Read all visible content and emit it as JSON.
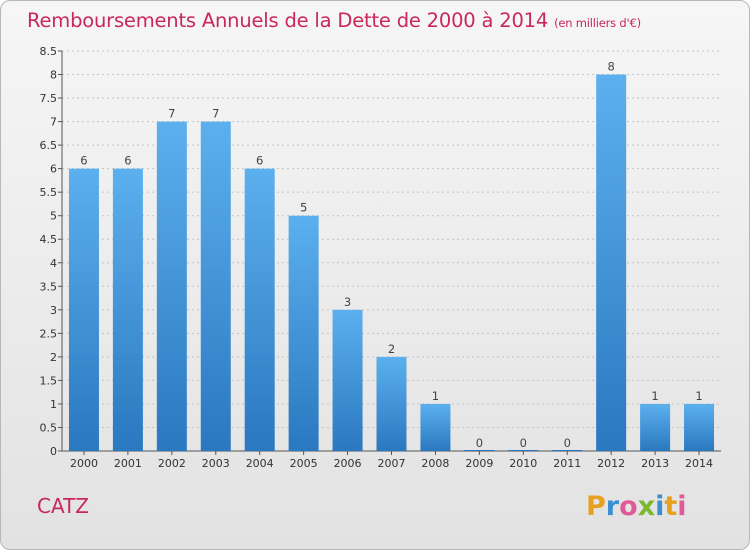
{
  "chart_data": {
    "type": "bar",
    "title": "Remboursements Annuels de la Dette de 2000 à 2014",
    "subtitle": "(en milliers d'€)",
    "xlabel": "",
    "ylabel": "",
    "categories": [
      "2000",
      "2001",
      "2002",
      "2003",
      "2004",
      "2005",
      "2006",
      "2007",
      "2008",
      "2009",
      "2010",
      "2011",
      "2012",
      "2013",
      "2014"
    ],
    "values": [
      6,
      6,
      7,
      7,
      6,
      5,
      3,
      2,
      1,
      0,
      0,
      0,
      8,
      1,
      1
    ],
    "data_labels": [
      "6",
      "6",
      "7",
      "7",
      "6",
      "5",
      "3",
      "2",
      "1",
      "0",
      "0",
      "0",
      "8",
      "1",
      "1"
    ],
    "ylim": [
      0,
      8.5
    ],
    "yticks": [
      0,
      0.5,
      1,
      1.5,
      2,
      2.5,
      3,
      3.5,
      4,
      4.5,
      5,
      5.5,
      6,
      6.5,
      7,
      7.5,
      8,
      8.5
    ],
    "ytick_labels": [
      "0",
      "0.5",
      "1",
      "1.5",
      "2",
      "2.5",
      "3",
      "3.5",
      "4",
      "4.5",
      "5",
      "5.5",
      "6",
      "6.5",
      "7",
      "7.5",
      "8",
      "8.5"
    ],
    "grid": "horizontal-dashed",
    "bar_color": "#3d8fd6",
    "title_color": "#c8285a"
  },
  "footer": {
    "commune": "CATZ",
    "logo_text": "Proxiti"
  }
}
